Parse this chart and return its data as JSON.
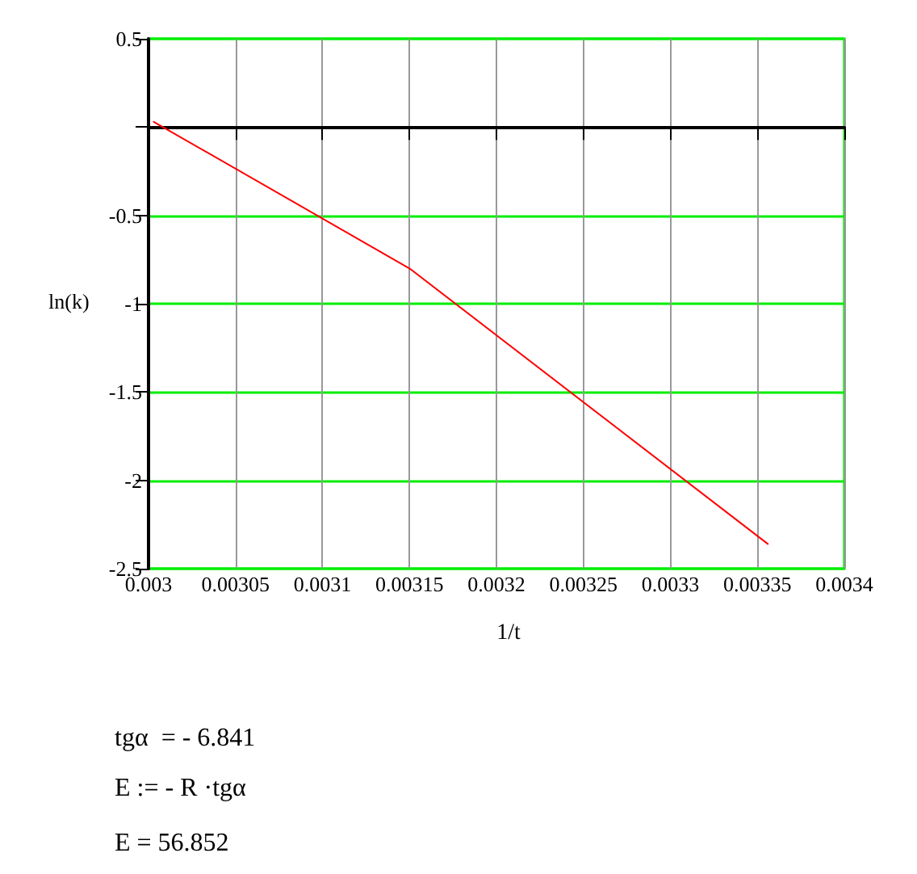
{
  "chart_data": {
    "type": "line",
    "xlabel": "1/t",
    "ylabel": "ln(k)",
    "series": [
      {
        "color": "#ff0000",
        "x": [
          0.003003,
          0.00315,
          0.003356
        ],
        "values": [
          0.03,
          -0.8,
          -2.36
        ]
      }
    ],
    "xlim": [
      0.003,
      0.0034
    ],
    "xticks": [
      0.003,
      0.00305,
      0.0031,
      0.00315,
      0.0032,
      0.00325,
      0.0033,
      0.00335,
      0.0034
    ],
    "ylim": [
      -2.5,
      0.5
    ],
    "yticks": [
      -2.5,
      -2,
      -1.5,
      -1,
      -0.5,
      {
        "value": 0,
        "label": null
      },
      0.5
    ],
    "grid": true,
    "marker": "none",
    "line_style": "solid",
    "annotations": [
      "tgα  = - 6.841",
      "E := - R ·tgα",
      "E = 56.852"
    ]
  }
}
